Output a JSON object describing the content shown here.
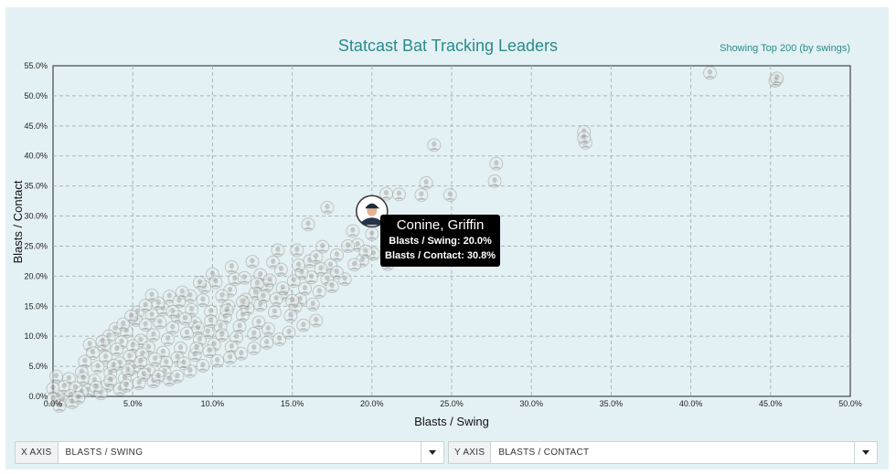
{
  "header": {
    "title": "Statcast Bat Tracking Leaders",
    "subtitle": "Showing Top 200 (by swings)"
  },
  "tooltip": {
    "name": "Conine, Griffin",
    "line1": "Blasts / Swing: 20.0%",
    "line2": "Blasts / Contact: 30.8%"
  },
  "controls": {
    "x_axis": {
      "label": "X AXIS",
      "value": "BLASTS / SWING"
    },
    "y_axis": {
      "label": "Y AXIS",
      "value": "BLASTS / CONTACT"
    }
  },
  "colors": {
    "title": "#2a8a8a",
    "panel_background": "#e4f1f4",
    "plot_background": "#e4f1f4",
    "grid": "#a9b7b4",
    "tooltip_background": "#000000"
  },
  "chart_data": {
    "type": "scatter",
    "xlabel": "Blasts / Swing",
    "ylabel": "Blasts / Contact",
    "xlim": [
      0,
      50
    ],
    "ylim": [
      0,
      55
    ],
    "x_ticks": [
      "0.0%",
      "5.0%",
      "10.0%",
      "15.0%",
      "20.0%",
      "25.0%",
      "30.0%",
      "35.0%",
      "40.0%",
      "45.0%",
      "50.0%"
    ],
    "y_ticks": [
      "0.0%",
      "5.0%",
      "10.0%",
      "15.0%",
      "20.0%",
      "25.0%",
      "30.0%",
      "35.0%",
      "40.0%",
      "45.0%",
      "50.0%",
      "55.0%"
    ],
    "grid": true,
    "highlight": {
      "name": "Conine, Griffin",
      "x": 20.0,
      "y": 30.8
    },
    "points": [
      [
        41.2,
        53.8
      ],
      [
        45.3,
        52.5
      ],
      [
        45.4,
        52.9
      ],
      [
        33.3,
        44.0
      ],
      [
        33.4,
        42.2
      ],
      [
        33.3,
        43.0
      ],
      [
        23.9,
        41.8
      ],
      [
        27.8,
        38.7
      ],
      [
        27.7,
        35.8
      ],
      [
        23.4,
        35.5
      ],
      [
        24.9,
        33.5
      ],
      [
        20.9,
        33.7
      ],
      [
        21.7,
        33.6
      ],
      [
        23.1,
        33.5
      ],
      [
        17.2,
        31.4
      ],
      [
        16.0,
        28.6
      ],
      [
        18.8,
        27.5
      ],
      [
        20.0,
        27.0
      ],
      [
        21.4,
        25.4
      ],
      [
        19.1,
        25.2
      ],
      [
        18.5,
        25.0
      ],
      [
        20.1,
        23.7
      ],
      [
        16.9,
        24.9
      ],
      [
        15.3,
        24.3
      ],
      [
        14.1,
        24.3
      ],
      [
        17.8,
        23.5
      ],
      [
        19.4,
        22.6
      ],
      [
        21.0,
        22.0
      ],
      [
        17.4,
        21.8
      ],
      [
        17.2,
        19.5
      ],
      [
        16.2,
        19.8
      ],
      [
        16.8,
        21.2
      ],
      [
        15.1,
        19.2
      ],
      [
        13.8,
        22.3
      ],
      [
        13.0,
        20.2
      ],
      [
        12.5,
        22.4
      ],
      [
        14.3,
        21.1
      ],
      [
        15.6,
        20.5
      ],
      [
        16.1,
        22.5
      ],
      [
        13.4,
        18.4
      ],
      [
        12.7,
        17.2
      ],
      [
        14.6,
        17.0
      ],
      [
        15.5,
        16.1
      ],
      [
        15.2,
        14.9
      ],
      [
        13.0,
        15.2
      ],
      [
        12.1,
        16.1
      ],
      [
        11.1,
        17.6
      ],
      [
        10.0,
        20.3
      ],
      [
        10.2,
        19.0
      ],
      [
        9.5,
        18.2
      ],
      [
        11.4,
        19.5
      ],
      [
        11.0,
        15.0
      ],
      [
        9.4,
        16.0
      ],
      [
        8.6,
        16.7
      ],
      [
        7.3,
        16.6
      ],
      [
        7.9,
        15.8
      ],
      [
        8.7,
        14.4
      ],
      [
        9.9,
        14.1
      ],
      [
        10.8,
        13.1
      ],
      [
        11.9,
        13.5
      ],
      [
        12.9,
        12.3
      ],
      [
        13.5,
        11.2
      ],
      [
        12.6,
        10.4
      ],
      [
        11.5,
        9.8
      ],
      [
        10.5,
        11.6
      ],
      [
        9.7,
        10.7
      ],
      [
        8.9,
        12.2
      ],
      [
        7.8,
        13.2
      ],
      [
        6.9,
        14.5
      ],
      [
        6.2,
        13.5
      ],
      [
        5.3,
        14.0
      ],
      [
        5.2,
        12.7
      ],
      [
        5.8,
        11.9
      ],
      [
        6.7,
        12.3
      ],
      [
        7.5,
        11.4
      ],
      [
        8.4,
        10.5
      ],
      [
        9.2,
        9.4
      ],
      [
        10.1,
        8.6
      ],
      [
        11.2,
        8.2
      ],
      [
        9.8,
        7.5
      ],
      [
        8.9,
        6.9
      ],
      [
        8.0,
        8.0
      ],
      [
        7.2,
        9.5
      ],
      [
        6.3,
        10.2
      ],
      [
        5.5,
        9.3
      ],
      [
        4.6,
        10.8
      ],
      [
        3.9,
        11.2
      ],
      [
        3.5,
        10.0
      ],
      [
        4.3,
        9.0
      ],
      [
        5.0,
        8.4
      ],
      [
        6.0,
        8.1
      ],
      [
        6.9,
        7.3
      ],
      [
        7.8,
        6.4
      ],
      [
        7.1,
        5.6
      ],
      [
        6.4,
        6.2
      ],
      [
        5.6,
        7.0
      ],
      [
        4.8,
        6.6
      ],
      [
        4.0,
        7.8
      ],
      [
        3.2,
        8.4
      ],
      [
        2.3,
        8.6
      ],
      [
        2.5,
        7.2
      ],
      [
        3.3,
        6.5
      ],
      [
        4.2,
        5.5
      ],
      [
        5.1,
        4.8
      ],
      [
        6.0,
        4.2
      ],
      [
        7.0,
        4.0
      ],
      [
        7.3,
        2.8
      ],
      [
        6.3,
        2.5
      ],
      [
        5.4,
        2.2
      ],
      [
        4.5,
        3.0
      ],
      [
        3.6,
        3.8
      ],
      [
        2.8,
        4.9
      ],
      [
        2.0,
        5.8
      ],
      [
        1.8,
        4.0
      ],
      [
        1.9,
        3.0
      ],
      [
        2.6,
        2.6
      ],
      [
        3.4,
        1.8
      ],
      [
        4.2,
        1.2
      ],
      [
        3.0,
        0.5
      ],
      [
        2.2,
        1.0
      ],
      [
        1.0,
        2.9
      ],
      [
        0.2,
        3.3
      ],
      [
        0.7,
        1.6
      ],
      [
        1.4,
        1.4
      ],
      [
        0.3,
        0.0
      ],
      [
        0.0,
        1.3
      ],
      [
        1.1,
        0.1
      ],
      [
        0.6,
        -0.7
      ],
      [
        0.0,
        -0.5
      ],
      [
        1.2,
        -1.0
      ],
      [
        0.4,
        -1.6
      ],
      [
        1.8,
        0.7
      ],
      [
        1.6,
        -0.2
      ],
      [
        7.8,
        3.3
      ],
      [
        8.6,
        4.2
      ],
      [
        9.4,
        5.1
      ],
      [
        10.3,
        5.9
      ],
      [
        11.1,
        6.4
      ],
      [
        11.8,
        7.1
      ],
      [
        12.6,
        8.0
      ],
      [
        13.4,
        8.9
      ],
      [
        14.2,
        9.5
      ],
      [
        14.8,
        10.6
      ],
      [
        15.7,
        11.8
      ],
      [
        16.5,
        12.6
      ],
      [
        17.5,
        18.3
      ],
      [
        18.3,
        19.5
      ],
      [
        16.7,
        17.4
      ],
      [
        15.8,
        17.9
      ],
      [
        14.9,
        13.4
      ],
      [
        13.9,
        14.0
      ],
      [
        12.2,
        14.6
      ],
      [
        11.7,
        11.6
      ],
      [
        10.6,
        10.2
      ],
      [
        9.1,
        11.3
      ],
      [
        8.3,
        12.9
      ],
      [
        7.5,
        14.1
      ],
      [
        6.6,
        15.5
      ],
      [
        5.8,
        15.1
      ],
      [
        4.9,
        13.3
      ],
      [
        4.4,
        12.0
      ],
      [
        3.1,
        9.1
      ],
      [
        3.8,
        5.1
      ],
      [
        4.7,
        4.3
      ],
      [
        5.7,
        3.6
      ],
      [
        6.6,
        3.3
      ],
      [
        8.2,
        5.5
      ],
      [
        9.0,
        8.0
      ],
      [
        9.9,
        12.5
      ],
      [
        10.9,
        14.3
      ],
      [
        11.9,
        15.7
      ],
      [
        12.8,
        18.7
      ],
      [
        13.6,
        19.3
      ],
      [
        14.4,
        18.0
      ],
      [
        15.4,
        21.8
      ],
      [
        16.5,
        23.2
      ],
      [
        17.8,
        20.6
      ],
      [
        18.9,
        21.9
      ],
      [
        19.6,
        24.1
      ],
      [
        12.0,
        19.7
      ],
      [
        11.2,
        21.5
      ],
      [
        8.1,
        17.3
      ],
      [
        6.2,
        16.8
      ],
      [
        9.2,
        18.9
      ],
      [
        10.6,
        16.7
      ],
      [
        13.2,
        16.6
      ],
      [
        14.0,
        16.2
      ],
      [
        15.0,
        15.9
      ],
      [
        16.3,
        15.3
      ],
      [
        2.7,
        1.5
      ],
      [
        3.6,
        2.6
      ],
      [
        4.6,
        1.8
      ],
      [
        5.5,
        5.7
      ]
    ]
  }
}
